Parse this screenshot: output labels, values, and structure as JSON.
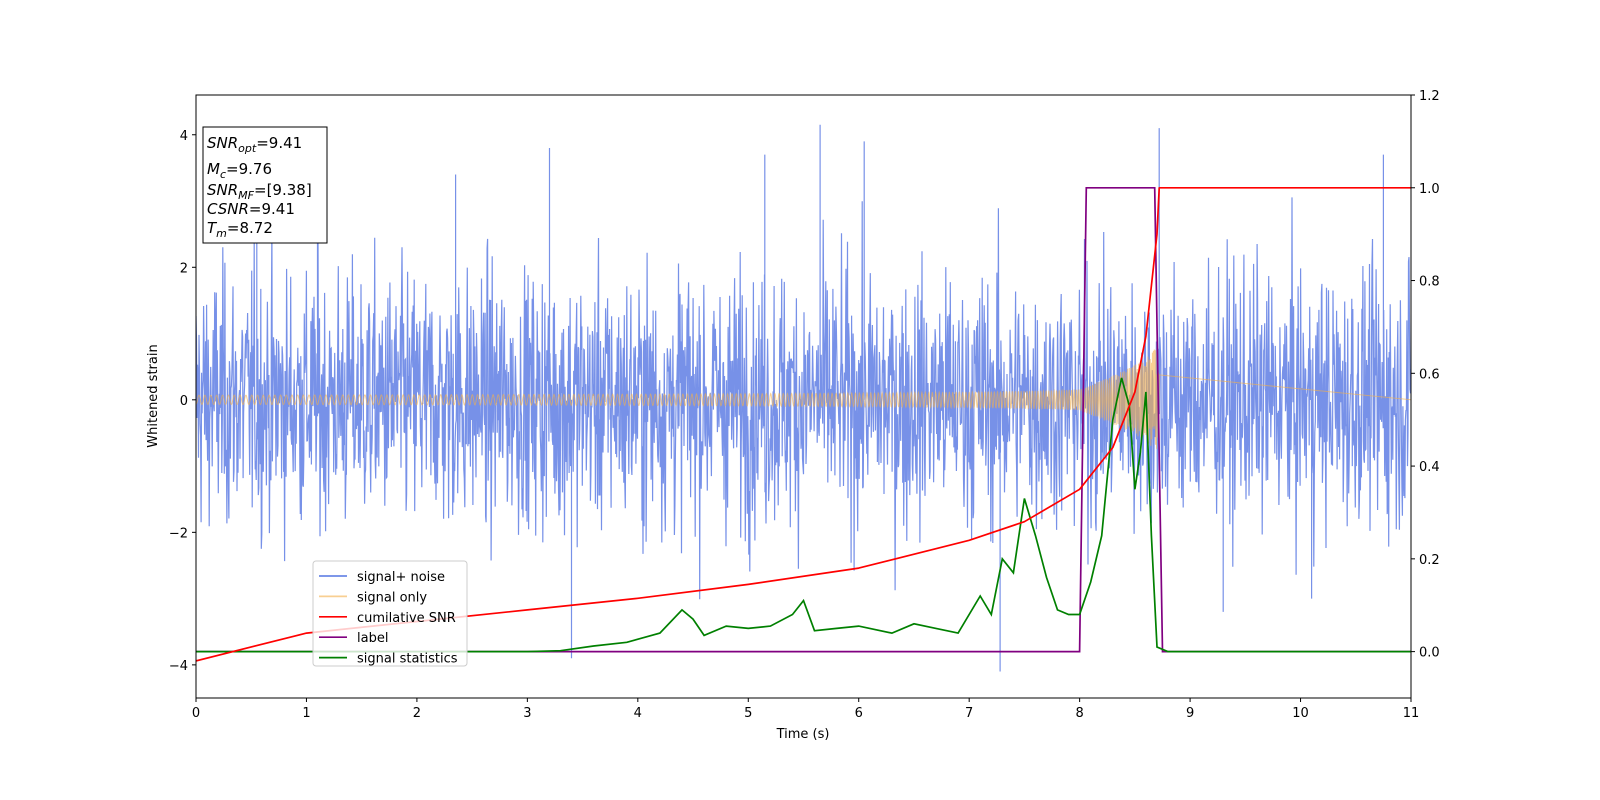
{
  "chart_data": {
    "type": "line",
    "xlabel": "Time (s)",
    "ylabel": "Whitened strain",
    "xlim": [
      0,
      11
    ],
    "ylim": [
      -4.5,
      4.6
    ],
    "y2lim": [
      -0.1,
      1.2
    ],
    "xticks": [
      "0",
      "1",
      "2",
      "3",
      "4",
      "5",
      "6",
      "7",
      "8",
      "9",
      "10",
      "11"
    ],
    "yticks": [
      "−4",
      "−2",
      "0",
      "2",
      "4"
    ],
    "y2ticks": [
      "0.0",
      "0.2",
      "0.4",
      "0.6",
      "0.8",
      "1.0",
      "1.2"
    ],
    "grid": false,
    "legend_position": "lower-left",
    "annotation": {
      "snr_opt": "=9.41",
      "mc": "=9.76",
      "snr_mf": "=[9.38]",
      "csnr": "=9.41",
      "tm": "=8.72"
    },
    "series": [
      {
        "name": "signal+ noise",
        "color": "#6b88e6",
        "axis": "left",
        "description": "noise band approx ±1.5 with spikes to ±4.2",
        "spikes": [
          [
            0.55,
            2.6
          ],
          [
            1.1,
            3.0
          ],
          [
            3.2,
            3.8
          ],
          [
            3.4,
            -3.9
          ],
          [
            5.15,
            3.7
          ],
          [
            5.65,
            4.15
          ],
          [
            7.28,
            -4.1
          ],
          [
            8.72,
            4.1
          ],
          [
            9.3,
            -3.2
          ],
          [
            10.75,
            3.7
          ],
          [
            10.1,
            -3.0
          ],
          [
            6.05,
            3.9
          ],
          [
            2.35,
            3.4
          ]
        ]
      },
      {
        "name": "signal only",
        "color": "#f5b04a",
        "axis": "left",
        "description": "chirp with amplitude growing from 0.05 to 0.75 ending at 8.72 s",
        "end_time": 8.72
      },
      {
        "name": "cumilative SNR",
        "color": "#ff0000",
        "axis": "right",
        "x": [
          0,
          1,
          2,
          3,
          4,
          5,
          6,
          7,
          7.5,
          8,
          8.3,
          8.5,
          8.6,
          8.7,
          8.72,
          11
        ],
        "y": [
          -0.02,
          0.04,
          0.065,
          0.09,
          0.115,
          0.145,
          0.18,
          0.24,
          0.28,
          0.35,
          0.44,
          0.56,
          0.68,
          0.9,
          1.0,
          1.0
        ]
      },
      {
        "name": "label",
        "color": "#800080",
        "axis": "right",
        "x": [
          0,
          8.0,
          8.06,
          8.68,
          8.75,
          11
        ],
        "y": [
          0.0,
          0.0,
          1.0,
          1.0,
          0.0,
          0.0
        ]
      },
      {
        "name": "signal statistics",
        "color": "#008000",
        "axis": "right",
        "x": [
          0,
          0.5,
          1,
          2,
          3,
          3.3,
          3.6,
          3.9,
          4.2,
          4.4,
          4.5,
          4.6,
          4.8,
          5.0,
          5.2,
          5.4,
          5.5,
          5.6,
          5.8,
          6.0,
          6.1,
          6.3,
          6.5,
          6.7,
          6.9,
          7.1,
          7.2,
          7.3,
          7.4,
          7.5,
          7.6,
          7.7,
          7.8,
          7.9,
          8.0,
          8.1,
          8.2,
          8.3,
          8.38,
          8.45,
          8.5,
          8.55,
          8.6,
          8.65,
          8.7,
          8.8,
          9,
          10,
          11
        ],
        "y": [
          0.0,
          0.0,
          0.0,
          0.0,
          0.0,
          0.002,
          0.012,
          0.02,
          0.04,
          0.09,
          0.07,
          0.035,
          0.055,
          0.05,
          0.055,
          0.08,
          0.11,
          0.045,
          0.05,
          0.055,
          0.05,
          0.04,
          0.06,
          0.05,
          0.04,
          0.12,
          0.08,
          0.2,
          0.17,
          0.33,
          0.25,
          0.16,
          0.09,
          0.08,
          0.08,
          0.15,
          0.25,
          0.5,
          0.59,
          0.53,
          0.35,
          0.43,
          0.56,
          0.25,
          0.01,
          0.0,
          0.0,
          0.0,
          0.0
        ]
      }
    ]
  }
}
